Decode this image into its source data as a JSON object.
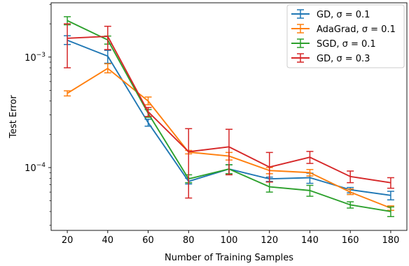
{
  "chart_data": {
    "type": "line",
    "title": "",
    "xlabel": "Number of Training Samples",
    "ylabel": "Test Error",
    "x": [
      20,
      40,
      60,
      80,
      100,
      120,
      140,
      160,
      180
    ],
    "xlim": [
      12,
      188
    ],
    "ylim": [
      2.7e-05,
      0.0031
    ],
    "yscale": "log",
    "x_tick_labels": [
      "20",
      "40",
      "60",
      "80",
      "100",
      "120",
      "140",
      "160",
      "180"
    ],
    "y_major_ticks": [
      {
        "value": 0.001,
        "base": "10",
        "exp": "−3"
      },
      {
        "value": 0.0001,
        "base": "10",
        "exp": "−4"
      }
    ],
    "grid": false,
    "legend_position": "top-right",
    "series": [
      {
        "name": "GD, σ = 0.1",
        "color": "#1f77b4",
        "values": [
          0.00142,
          0.00102,
          0.000255,
          7.5e-05,
          9.7e-05,
          7.9e-05,
          8.1e-05,
          6.3e-05,
          5.6e-05
        ],
        "err_low": [
          0.0013,
          0.00088,
          0.000237,
          7.1e-05,
          8.8e-05,
          7.5e-05,
          7.2e-05,
          5.9e-05,
          5.1e-05
        ],
        "err_high": [
          0.00156,
          0.00115,
          0.000274,
          8e-05,
          0.000106,
          8.2e-05,
          8.9e-05,
          6.6e-05,
          6.1e-05
        ]
      },
      {
        "name": "AdaGrad, σ = 0.1",
        "color": "#ff7f0e",
        "values": [
          0.00047,
          0.00079,
          0.0004,
          0.000138,
          0.000127,
          9.4e-05,
          9e-05,
          6e-05,
          4.3e-05
        ],
        "err_low": [
          0.000445,
          0.00072,
          0.00037,
          0.000133,
          0.000117,
          8.8e-05,
          8.4e-05,
          5.7e-05,
          4.1e-05
        ],
        "err_high": [
          0.000495,
          0.00087,
          0.000435,
          0.000143,
          0.000137,
          0.0001,
          9.6e-05,
          6.4e-05,
          4.5e-05
        ]
      },
      {
        "name": "SGD, σ = 0.1",
        "color": "#2ca02c",
        "values": [
          0.00214,
          0.00143,
          0.00031,
          7.9e-05,
          9.7e-05,
          6.7e-05,
          6.2e-05,
          4.6e-05,
          4e-05
        ],
        "err_low": [
          0.00196,
          0.00131,
          0.000285,
          7.3e-05,
          8.8e-05,
          6e-05,
          5.5e-05,
          4.3e-05,
          3.6e-05
        ],
        "err_high": [
          0.00232,
          0.00155,
          0.000335,
          8.6e-05,
          0.000106,
          7.4e-05,
          6.9e-05,
          4.9e-05,
          4.4e-05
        ]
      },
      {
        "name": "GD, σ = 0.3",
        "color": "#d62728",
        "values": [
          0.00148,
          0.00154,
          0.00032,
          0.000139,
          0.000154,
          0.000101,
          0.000124,
          8.3e-05,
          7.3e-05
        ],
        "err_low": [
          0.0008,
          0.00117,
          0.00029,
          5.3e-05,
          8.6e-05,
          7.4e-05,
          0.000109,
          7.3e-05,
          6.5e-05
        ],
        "err_high": [
          0.002,
          0.0019,
          0.00035,
          0.000225,
          0.000222,
          0.000137,
          0.00014,
          9.3e-05,
          8.1e-05
        ]
      }
    ]
  }
}
